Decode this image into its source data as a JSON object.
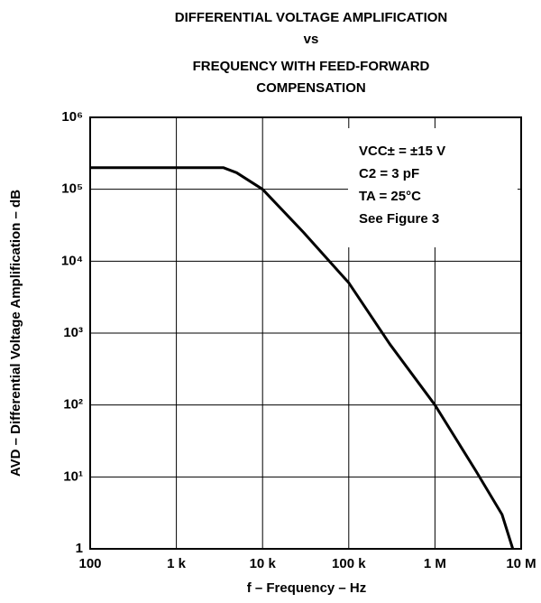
{
  "chart_data": {
    "type": "line",
    "title": [
      "DIFFERENTIAL VOLTAGE AMPLIFICATION",
      "vs",
      "FREQUENCY WITH FEED-FORWARD",
      "COMPENSATION"
    ],
    "x_label": "f – Frequency – Hz",
    "y_label": "AVD – Differential Voltage Amplification – dB",
    "annotations": [
      "VCC± = ±15 V",
      "C2 = 3 pF",
      "TA = 25°C",
      "See Figure 3"
    ],
    "x": [
      100,
      1000,
      3500,
      5000,
      10000,
      30000,
      100000,
      300000,
      1000000,
      3000000,
      6000000,
      8000000
    ],
    "series": [
      {
        "name": "AVD",
        "color": "#000000",
        "values": [
          200000,
          200000,
          200000,
          170000,
          100000,
          25000,
          5000,
          700,
          100,
          12,
          3,
          1
        ]
      }
    ],
    "xlim": [
      100,
      10000000
    ],
    "ylim": [
      1,
      1000000
    ],
    "xscale": "log",
    "yscale": "log",
    "grid": true,
    "xticks": [
      100,
      {
        "value": 1000,
        "label": "1 k"
      },
      {
        "value": 10000,
        "label": "10 k"
      },
      {
        "value": 100000,
        "label": "100 k"
      },
      {
        "value": 1000000,
        "label": "1 M"
      },
      {
        "value": 10000000,
        "label": "10 M"
      }
    ],
    "yticks": [
      1,
      {
        "value": 10,
        "label": "10¹"
      },
      {
        "value": 100,
        "label": "10²"
      },
      {
        "value": 1000,
        "label": "10³"
      },
      {
        "value": 10000,
        "label": "10⁴"
      },
      {
        "value": 100000,
        "label": "10⁵"
      },
      {
        "value": 1000000,
        "label": "10⁶"
      }
    ]
  }
}
